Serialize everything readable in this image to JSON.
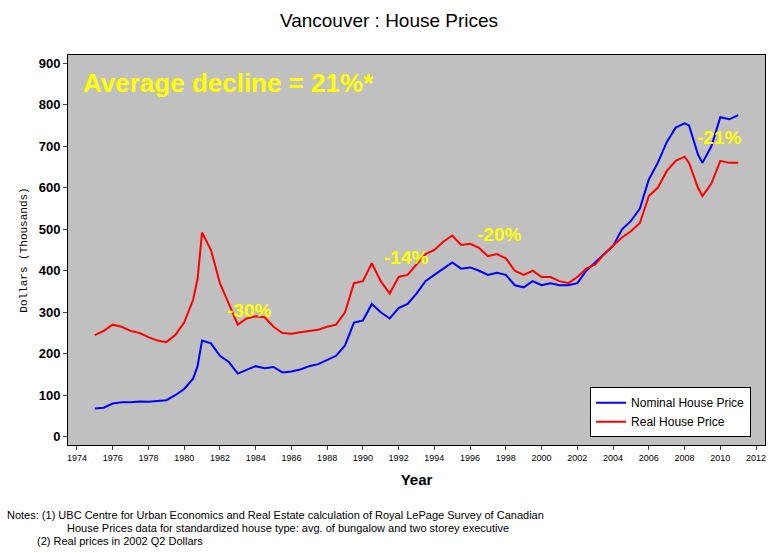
{
  "chart_data": {
    "type": "line",
    "title": "Vancouver : House Prices",
    "x_label": "Year",
    "y_label": "Dollars (Thousands)",
    "x": [
      1975,
      1975.5,
      1976,
      1976.5,
      1977,
      1977.5,
      1978,
      1978.5,
      1979,
      1979.5,
      1980,
      1980.5,
      1980.75,
      1981,
      1981.5,
      1982,
      1982.5,
      1983,
      1983.5,
      1984,
      1984.5,
      1985,
      1985.5,
      1986,
      1986.5,
      1987,
      1987.5,
      1988,
      1988.5,
      1989,
      1989.5,
      1990,
      1990.5,
      1991,
      1991.5,
      1992,
      1992.5,
      1993,
      1993.5,
      1994,
      1994.5,
      1995,
      1995.5,
      1996,
      1996.5,
      1997,
      1997.5,
      1998,
      1998.5,
      1999,
      1999.5,
      2000,
      2000.5,
      2001,
      2001.5,
      2002,
      2002.5,
      2003,
      2003.5,
      2004,
      2004.5,
      2005,
      2005.5,
      2006,
      2006.5,
      2007,
      2007.5,
      2008,
      2008.25,
      2008.75,
      2009,
      2009.5,
      2010,
      2010.5,
      2011
    ],
    "series": [
      {
        "name": "Nominal House Price",
        "color": "#0000ff",
        "values": [
          68,
          70,
          80,
          83,
          83,
          85,
          84,
          86,
          88,
          100,
          115,
          140,
          170,
          232,
          225,
          195,
          180,
          152,
          162,
          170,
          165,
          168,
          155,
          157,
          162,
          170,
          175,
          185,
          195,
          220,
          275,
          280,
          320,
          300,
          285,
          310,
          320,
          345,
          375,
          390,
          405,
          420,
          405,
          408,
          400,
          390,
          395,
          390,
          365,
          360,
          375,
          365,
          370,
          365,
          365,
          370,
          400,
          420,
          440,
          460,
          500,
          520,
          550,
          620,
          660,
          710,
          745,
          755,
          750,
          680,
          660,
          700,
          770,
          765,
          775
        ]
      },
      {
        "name": "Real House Price",
        "color": "#ff0000",
        "values": [
          245,
          255,
          270,
          265,
          255,
          250,
          240,
          232,
          228,
          245,
          275,
          330,
          380,
          492,
          450,
          370,
          320,
          270,
          285,
          290,
          288,
          265,
          250,
          248,
          252,
          255,
          258,
          265,
          270,
          300,
          370,
          375,
          418,
          375,
          345,
          385,
          390,
          415,
          440,
          450,
          470,
          485,
          462,
          465,
          455,
          435,
          440,
          430,
          400,
          390,
          400,
          385,
          385,
          375,
          370,
          385,
          405,
          415,
          440,
          460,
          480,
          495,
          515,
          580,
          600,
          640,
          665,
          675,
          660,
          600,
          580,
          610,
          665,
          660,
          660
        ]
      }
    ],
    "xlim": [
      1973.5,
      2012.5
    ],
    "xticks": [
      1974,
      1976,
      1978,
      1980,
      1982,
      1984,
      1986,
      1988,
      1990,
      1992,
      1994,
      1996,
      1998,
      2000,
      2002,
      2004,
      2006,
      2008,
      2010,
      2012
    ],
    "ylim": [
      -20,
      920
    ],
    "yticks": [
      0,
      100,
      200,
      300,
      400,
      500,
      600,
      700,
      800,
      900
    ],
    "grid": false,
    "legend": "bottom right",
    "annotations": [
      {
        "text": "Average decline = 21%*",
        "x": 1974.2,
        "y": 852,
        "color": "#ffff00"
      },
      {
        "text": "-30%",
        "x": 1983.6,
        "y": 305,
        "color": "#ffff00"
      },
      {
        "text": "-14%",
        "x": 1992.4,
        "y": 433,
        "color": "#ffff00"
      },
      {
        "text": "-20%",
        "x": 1997.6,
        "y": 488,
        "color": "#ffff00"
      },
      {
        "text": "-21%",
        "x": 2009.9,
        "y": 722,
        "color": "#ffff00"
      }
    ],
    "notes": [
      "Notes: (1) UBC Centre for Urban Economics and Real Estate calculation of Royal LePage Survey of Canadian",
      "House Prices data for standardized house type: avg. of bungalow and two storey executive",
      "(2) Real prices in 2002 Q2 Dollars"
    ]
  }
}
